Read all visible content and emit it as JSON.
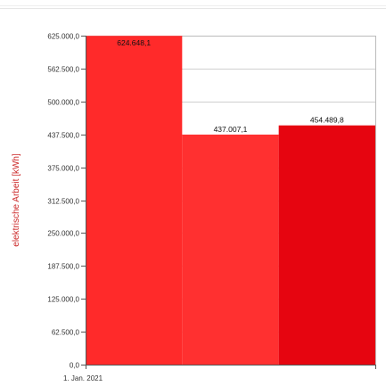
{
  "chart_data": {
    "type": "bar",
    "ylabel": "elektrische Arbeit [kWh]",
    "xlabel": "",
    "title": "",
    "ylim": [
      0,
      625000
    ],
    "yticks": [
      0,
      62500,
      125000,
      187500,
      250000,
      312500,
      375000,
      437500,
      500000,
      562500,
      625000
    ],
    "ytick_labels": [
      "0,0",
      "62.500,0",
      "125.000,0",
      "187.500,0",
      "250.000,0",
      "312.500,0",
      "375.000,0",
      "437.500,0",
      "500.000,0",
      "562.500,0",
      "625.000,0"
    ],
    "xtick_labels": [
      "1. Jan. 2021"
    ],
    "grid": true,
    "series": [
      {
        "values": [
          624648.1,
          437007.1,
          454489.8
        ],
        "labels": [
          "624.648,1",
          "437.007,1",
          "454.489,8"
        ]
      }
    ],
    "colors": [
      "#ff2a2a",
      "#ff3030",
      "#e60510"
    ]
  }
}
